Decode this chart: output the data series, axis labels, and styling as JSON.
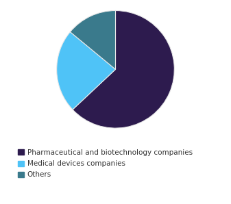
{
  "labels": [
    "Pharmaceutical and biotechnology companies",
    "Medical devices companies",
    "Others"
  ],
  "values": [
    63,
    23,
    14
  ],
  "colors": [
    "#2d1b4e",
    "#4fc3f7",
    "#3a7a8c"
  ],
  "startangle": 90,
  "legend_labels": [
    "Pharmaceutical and biotechnology companies",
    "Medical devices companies",
    "Others"
  ],
  "background_color": "#ffffff",
  "wedge_edge_color": "#e8e8e8",
  "wedge_linewidth": 0.8,
  "legend_fontsize": 7.5,
  "legend_marker_color": [
    "#2d1b4e",
    "#4fc3f7",
    "#3a7a8c"
  ]
}
